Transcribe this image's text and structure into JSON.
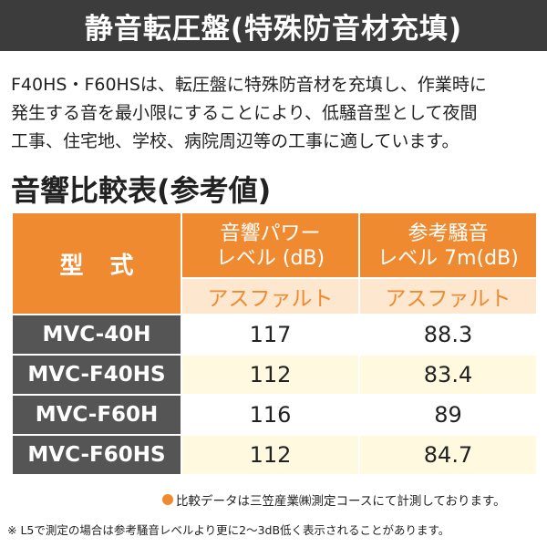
{
  "header": {
    "title": "静音転圧盤(特殊防音材充填)"
  },
  "description": {
    "lines": [
      "F40HS・F60HSは、転圧盤に特殊防音材を充填し、作業時に",
      "発生する音を最小限にすることにより、低騒音型として夜間",
      "工事、住宅地、学校、病院周辺等の工事に適しています。"
    ]
  },
  "section": {
    "title": "音響比較表(参考値)"
  },
  "table": {
    "model_header": "型 式",
    "col_a_header_line1": "音響パワー",
    "col_a_header_line2": "レベル (dB)",
    "col_b_header_line1": "参考騒音",
    "col_b_header_line2": "レベル 7m(dB)",
    "col_a_sub": "アスファルト",
    "col_b_sub": "アスファルト",
    "rows": [
      {
        "model": "MVC-40H",
        "power": "117",
        "noise": "88.3"
      },
      {
        "model": "MVC-F40HS",
        "power": "112",
        "noise": "83.4"
      },
      {
        "model": "MVC-F60H",
        "power": "116",
        "noise": "89"
      },
      {
        "model": "MVC-F60HS",
        "power": "112",
        "noise": "84.7"
      }
    ]
  },
  "notes": {
    "note1": "比較データは三笠産業㈱測定コースにて計測しております。",
    "note2": "※ L5で測定の場合は参考騒音レベルより更に2～3dB低く表示されることがあります。"
  },
  "colors": {
    "accent": "#f08a30",
    "header_bg": "#3c3c3c",
    "model_bg": "#555555",
    "sub_bg": "#fde7cf",
    "row_alt_bg": "#fff9e0"
  }
}
